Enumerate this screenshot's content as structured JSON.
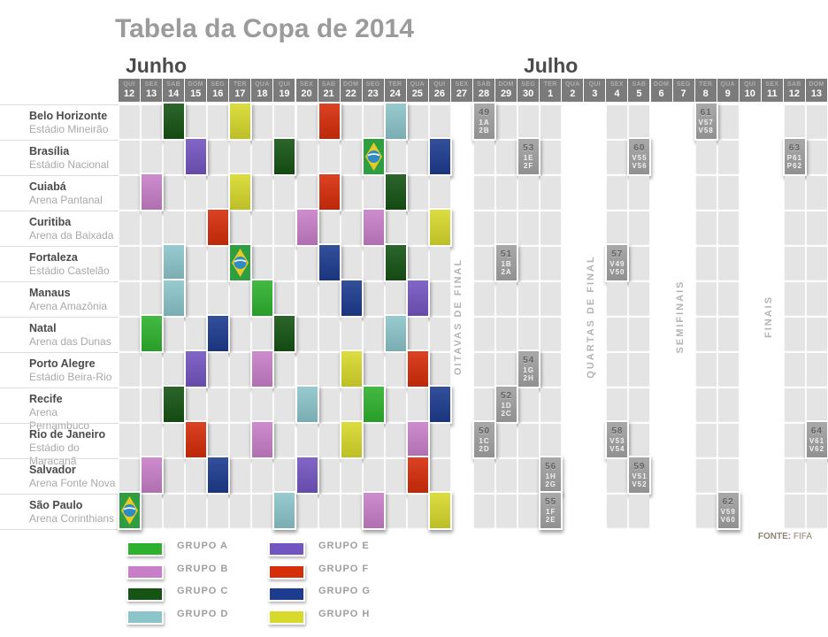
{
  "title": "Tabela da Copa de 2014",
  "months": [
    {
      "label": "Junho"
    },
    {
      "label": "Julho"
    }
  ],
  "source": {
    "bold": "FONTE:",
    "rest": " FIFA"
  },
  "chart_data": {
    "type": "table",
    "columns": [
      {
        "dow": "QUI",
        "day": "12"
      },
      {
        "dow": "SEX",
        "day": "13"
      },
      {
        "dow": "SAB",
        "day": "14"
      },
      {
        "dow": "DOM",
        "day": "15"
      },
      {
        "dow": "SEG",
        "day": "16"
      },
      {
        "dow": "TER",
        "day": "17"
      },
      {
        "dow": "QUA",
        "day": "18"
      },
      {
        "dow": "QUI",
        "day": "19"
      },
      {
        "dow": "SEX",
        "day": "20"
      },
      {
        "dow": "SAB",
        "day": "21"
      },
      {
        "dow": "DOM",
        "day": "22"
      },
      {
        "dow": "SEG",
        "day": "23"
      },
      {
        "dow": "TER",
        "day": "24"
      },
      {
        "dow": "QUA",
        "day": "25"
      },
      {
        "dow": "QUI",
        "day": "26"
      },
      {
        "dow": "SEX",
        "day": "27"
      },
      {
        "dow": "SAB",
        "day": "28"
      },
      {
        "dow": "DOM",
        "day": "29"
      },
      {
        "dow": "SEG",
        "day": "30"
      },
      {
        "dow": "TER",
        "day": "1"
      },
      {
        "dow": "QUA",
        "day": "2"
      },
      {
        "dow": "QUI",
        "day": "3"
      },
      {
        "dow": "SEX",
        "day": "4"
      },
      {
        "dow": "SAB",
        "day": "5"
      },
      {
        "dow": "DOM",
        "day": "6"
      },
      {
        "dow": "SEG",
        "day": "7"
      },
      {
        "dow": "TER",
        "day": "8"
      },
      {
        "dow": "QUA",
        "day": "9"
      },
      {
        "dow": "QUI",
        "day": "10"
      },
      {
        "dow": "SEX",
        "day": "11"
      },
      {
        "dow": "SAB",
        "day": "12"
      },
      {
        "dow": "DOM",
        "day": "13"
      }
    ],
    "gap_columns": [
      15,
      20,
      21,
      24,
      25,
      28,
      29
    ],
    "sections": [
      {
        "text": "OITAVAS DE FINAL",
        "col": 15
      },
      {
        "text": "QUARTAS DE FINAL",
        "col": 21
      },
      {
        "text": "SEMIFINAIS",
        "col": 25
      },
      {
        "text": "FINAIS",
        "col": 29
      }
    ],
    "groups": [
      {
        "id": "A",
        "label": "GRUPO A",
        "color": "#2eb22e"
      },
      {
        "id": "B",
        "label": "GRUPO B",
        "color": "#c87fc8"
      },
      {
        "id": "C",
        "label": "GRUPO C",
        "color": "#155415"
      },
      {
        "id": "D",
        "label": "GRUPO D",
        "color": "#8bc5ca"
      },
      {
        "id": "E",
        "label": "GRUPO E",
        "color": "#7355c1"
      },
      {
        "id": "F",
        "label": "GRUPO F",
        "color": "#d62d0a"
      },
      {
        "id": "G",
        "label": "GRUPO G",
        "color": "#1d3c8f"
      },
      {
        "id": "H",
        "label": "GRUPO H",
        "color": "#d7d92b"
      }
    ],
    "venues": [
      {
        "city": "Belo Horizonte",
        "stadium": "Estádio Mineirão",
        "cells": [
          {
            "col": 2,
            "group": "C"
          },
          {
            "col": 5,
            "group": "H"
          },
          {
            "col": 9,
            "group": "F"
          },
          {
            "col": 12,
            "group": "D"
          },
          {
            "col": 16,
            "match": "49",
            "home": "1A",
            "away": "2B"
          },
          {
            "col": 26,
            "match": "61",
            "home": "V57",
            "away": "V58"
          }
        ]
      },
      {
        "city": "Brasília",
        "stadium": "Estádio Nacional",
        "cells": [
          {
            "col": 3,
            "group": "E"
          },
          {
            "col": 7,
            "group": "C"
          },
          {
            "col": 11,
            "group": "A",
            "flag": true
          },
          {
            "col": 14,
            "group": "G"
          },
          {
            "col": 18,
            "match": "53",
            "home": "1E",
            "away": "2F"
          },
          {
            "col": 23,
            "match": "60",
            "home": "V55",
            "away": "V56"
          },
          {
            "col": 30,
            "match": "63",
            "home": "P61",
            "away": "P62"
          }
        ]
      },
      {
        "city": "Cuiabá",
        "stadium": "Arena Pantanal",
        "cells": [
          {
            "col": 1,
            "group": "B"
          },
          {
            "col": 5,
            "group": "H"
          },
          {
            "col": 9,
            "group": "F"
          },
          {
            "col": 12,
            "group": "C"
          }
        ]
      },
      {
        "city": "Curitiba",
        "stadium": "Arena da Baixada",
        "cells": [
          {
            "col": 4,
            "group": "F"
          },
          {
            "col": 8,
            "group": "B"
          },
          {
            "col": 11,
            "group": "B"
          },
          {
            "col": 14,
            "group": "H"
          }
        ]
      },
      {
        "city": "Fortaleza",
        "stadium": "Estádio Castelão",
        "cells": [
          {
            "col": 2,
            "group": "D"
          },
          {
            "col": 5,
            "group": "A",
            "flag": true
          },
          {
            "col": 9,
            "group": "G"
          },
          {
            "col": 12,
            "group": "C"
          },
          {
            "col": 17,
            "match": "51",
            "home": "1B",
            "away": "2A"
          },
          {
            "col": 22,
            "match": "57",
            "home": "V49",
            "away": "V50"
          }
        ]
      },
      {
        "city": "Manaus",
        "stadium": "Arena Amazônia",
        "cells": [
          {
            "col": 2,
            "group": "D"
          },
          {
            "col": 6,
            "group": "A"
          },
          {
            "col": 10,
            "group": "G"
          },
          {
            "col": 13,
            "group": "E"
          }
        ]
      },
      {
        "city": "Natal",
        "stadium": "Arena das Dunas",
        "cells": [
          {
            "col": 1,
            "group": "A"
          },
          {
            "col": 4,
            "group": "G"
          },
          {
            "col": 7,
            "group": "C"
          },
          {
            "col": 12,
            "group": "D"
          }
        ]
      },
      {
        "city": "Porto Alegre",
        "stadium": "Estádio Beira-Rio",
        "cells": [
          {
            "col": 3,
            "group": "E"
          },
          {
            "col": 6,
            "group": "B"
          },
          {
            "col": 10,
            "group": "H"
          },
          {
            "col": 13,
            "group": "F"
          },
          {
            "col": 18,
            "match": "54",
            "home": "1G",
            "away": "2H"
          }
        ]
      },
      {
        "city": "Recife",
        "stadium": "Arena Pernambuco",
        "cells": [
          {
            "col": 2,
            "group": "C"
          },
          {
            "col": 8,
            "group": "D"
          },
          {
            "col": 11,
            "group": "A"
          },
          {
            "col": 14,
            "group": "G"
          },
          {
            "col": 17,
            "match": "52",
            "home": "1D",
            "away": "2C"
          }
        ]
      },
      {
        "city": "Rio de Janeiro",
        "stadium": "Estádio do Maracanã",
        "cells": [
          {
            "col": 3,
            "group": "F"
          },
          {
            "col": 6,
            "group": "B"
          },
          {
            "col": 10,
            "group": "H"
          },
          {
            "col": 13,
            "group": "B"
          },
          {
            "col": 16,
            "match": "50",
            "home": "1C",
            "away": "2D"
          },
          {
            "col": 22,
            "match": "58",
            "home": "V53",
            "away": "V54"
          },
          {
            "col": 31,
            "match": "64",
            "home": "V61",
            "away": "V62"
          }
        ]
      },
      {
        "city": "Salvador",
        "stadium": "Arena Fonte Nova",
        "cells": [
          {
            "col": 1,
            "group": "B"
          },
          {
            "col": 4,
            "group": "G"
          },
          {
            "col": 8,
            "group": "E"
          },
          {
            "col": 13,
            "group": "F"
          },
          {
            "col": 19,
            "match": "56",
            "home": "1H",
            "away": "2G"
          },
          {
            "col": 23,
            "match": "59",
            "home": "V51",
            "away": "V52"
          }
        ]
      },
      {
        "city": "São Paulo",
        "stadium": "Arena Corinthians",
        "cells": [
          {
            "col": 0,
            "group": "A",
            "flag": true
          },
          {
            "col": 7,
            "group": "D"
          },
          {
            "col": 11,
            "group": "B"
          },
          {
            "col": 14,
            "group": "H"
          },
          {
            "col": 19,
            "match": "55",
            "home": "1F",
            "away": "2E"
          },
          {
            "col": 27,
            "match": "62",
            "home": "V59",
            "away": "V60"
          }
        ]
      }
    ]
  }
}
